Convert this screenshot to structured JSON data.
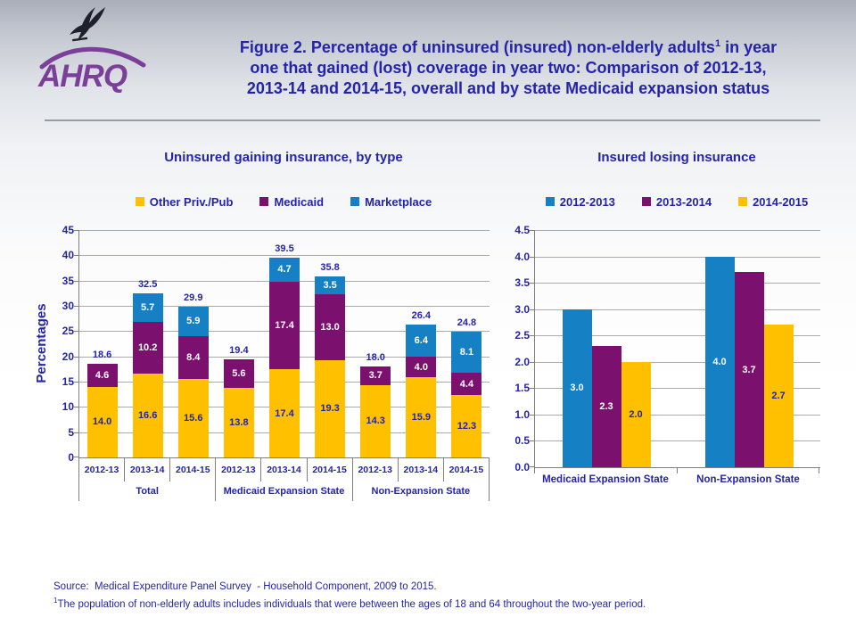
{
  "header": {
    "logo": {
      "org_acronym": "AHRQ",
      "org_color": "#7b3f99",
      "eagle_icon": "hhs-eagle-icon"
    },
    "title": {
      "line1_pre": "Figure 2. Percentage of uninsured (insured) non-elderly adults",
      "line1_sup": "1",
      "line1_post": " in year",
      "line2": "one that gained (lost) coverage in year two: Comparison of 2012-13,",
      "line3": "2013-14 and 2014-15, overall and by state Medicaid expansion status",
      "color": "#2424a8"
    }
  },
  "chart_data": [
    {
      "type": "bar",
      "variant": "stacked",
      "title": "Uninsured gaining insurance, by type",
      "ylabel": "Percentages",
      "xlabel": "",
      "ylim": [
        0,
        45
      ],
      "yticks": [
        0,
        5,
        10,
        15,
        20,
        25,
        30,
        35,
        40,
        45
      ],
      "ytick_decimals": 0,
      "grid": true,
      "legend_position": "top",
      "groups": [
        {
          "label": "Total",
          "categories": [
            "2012-13",
            "2013-14",
            "2014-15"
          ]
        },
        {
          "label": "Medicaid Expansion State",
          "categories": [
            "2012-13",
            "2013-14",
            "2014-15"
          ]
        },
        {
          "label": "Non-Expansion State",
          "categories": [
            "2012-13",
            "2013-14",
            "2014-15"
          ]
        }
      ],
      "series": [
        {
          "name": "Other Priv./Pub",
          "color": "#ffc000",
          "label_color": "#2424a8",
          "values": [
            14.0,
            16.6,
            15.6,
            13.8,
            17.4,
            19.3,
            14.3,
            15.9,
            12.3
          ]
        },
        {
          "name": "Medicaid",
          "color": "#7b106e",
          "label_color": "#ffffff",
          "values": [
            4.6,
            10.2,
            8.4,
            5.6,
            17.4,
            13.0,
            3.7,
            4.0,
            4.4
          ]
        },
        {
          "name": "Marketplace",
          "color": "#1580c4",
          "label_color": "#ffffff",
          "values": [
            0,
            5.7,
            5.9,
            0,
            4.7,
            3.5,
            0,
            6.4,
            8.1
          ]
        }
      ],
      "totals": [
        18.6,
        32.5,
        29.9,
        19.4,
        39.5,
        35.8,
        18.0,
        26.4,
        24.8
      ]
    },
    {
      "type": "bar",
      "variant": "grouped",
      "title": "Insured losing insurance",
      "ylabel": "",
      "xlabel": "",
      "ylim": [
        0,
        4.5
      ],
      "yticks": [
        0,
        0.5,
        1,
        1.5,
        2,
        2.5,
        3,
        3.5,
        4,
        4.5
      ],
      "ytick_decimals": 1,
      "grid": true,
      "legend_position": "top",
      "categories": [
        "Medicaid Expansion State",
        "Non-Expansion State"
      ],
      "series": [
        {
          "name": "2012-2013",
          "color": "#1580c4",
          "label_color": "#ffffff",
          "values": [
            3.0,
            4.0
          ]
        },
        {
          "name": "2013-2014",
          "color": "#7b106e",
          "label_color": "#ffffff",
          "values": [
            2.3,
            3.7
          ]
        },
        {
          "name": "2014-2015",
          "color": "#ffc000",
          "label_color": "#2424a8",
          "values": [
            2.0,
            2.7
          ]
        }
      ]
    }
  ],
  "footer": {
    "source_line": "Source:  Medical Expenditure Panel Survey  - Household Component, 2009 to 2015.",
    "footnote_sup": "1",
    "footnote_text": "The population of non-elderly adults includes individuals that were between the ages of 18 and 64 throughout the two-year period.",
    "color": "#2424a8"
  }
}
